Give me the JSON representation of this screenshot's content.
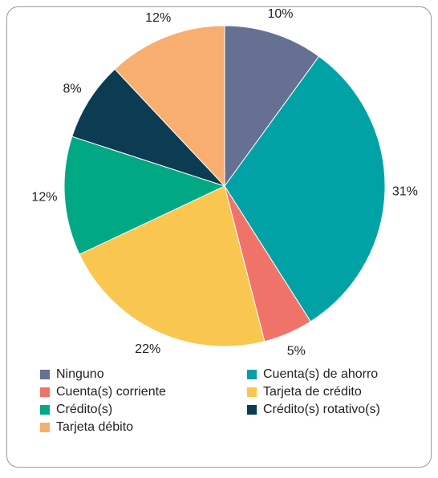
{
  "chart_data": {
    "type": "pie",
    "categories": [
      "Ninguno",
      "Cuenta(s) de ahorro",
      "Cuenta(s) corriente",
      "Tarjeta de crédito",
      "Crédito(s)",
      "Crédito(s) rotativo(s)",
      "Tarjeta débito"
    ],
    "values": [
      10,
      31,
      5,
      22,
      12,
      8,
      12
    ],
    "value_labels": [
      "10%",
      "31%",
      "5%",
      "22%",
      "12%",
      "8%",
      "12%"
    ],
    "colors": [
      "#657092",
      "#00a2a6",
      "#f0736a",
      "#f9c74f",
      "#00a884",
      "#0b3c52",
      "#f8ae6f"
    ],
    "legend": "bottom"
  }
}
